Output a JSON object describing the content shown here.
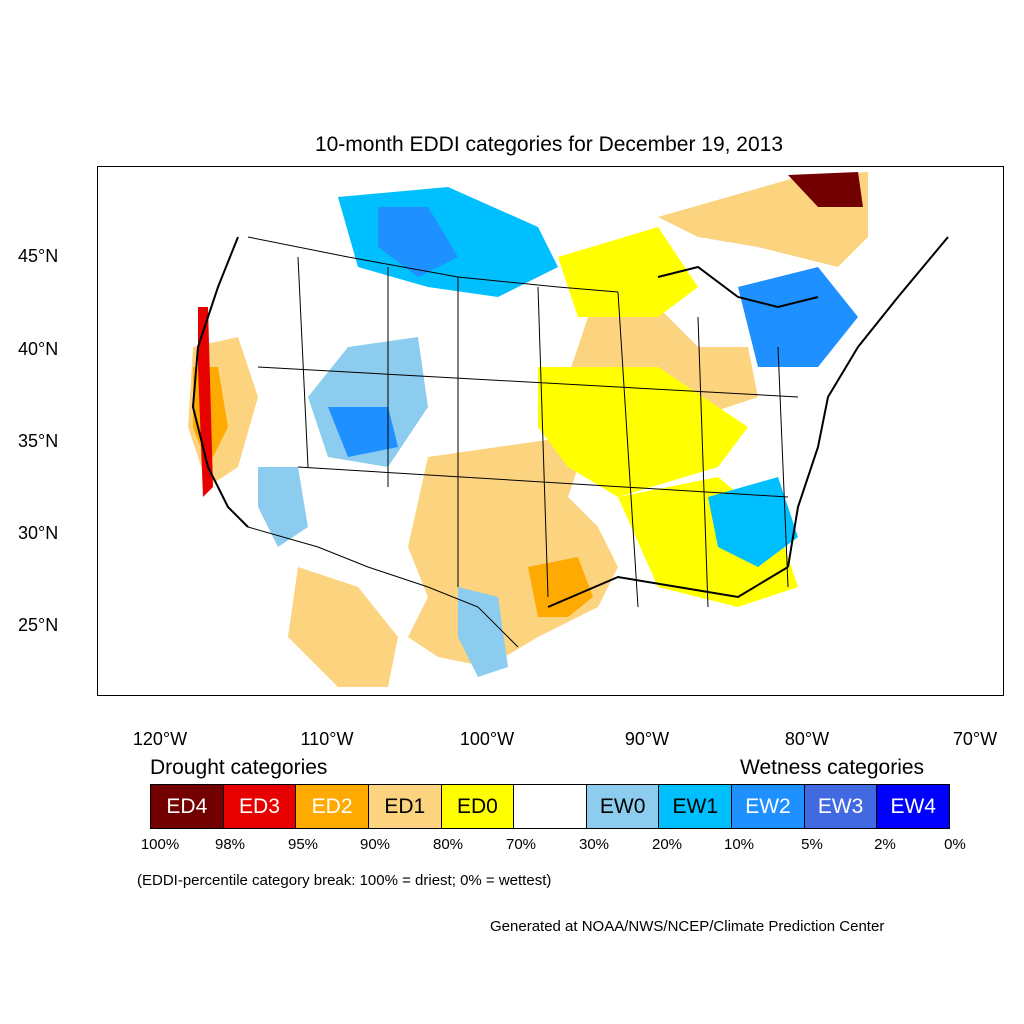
{
  "title": "10-month EDDI categories for December 19, 2013",
  "lat_labels": [
    "45°N",
    "40°N",
    "35°N",
    "30°N",
    "25°N"
  ],
  "lon_labels": [
    "120°W",
    "110°W",
    "100°W",
    "90°W",
    "80°W",
    "70°W"
  ],
  "legend": {
    "drought_heading": "Drought categories",
    "wetness_heading": "Wetness categories",
    "categories": [
      {
        "label": "ED4",
        "color": "#730000",
        "text_color": "#ffffff"
      },
      {
        "label": "ED3",
        "color": "#e60000",
        "text_color": "#ffffff"
      },
      {
        "label": "ED2",
        "color": "#ffaa00",
        "text_color": "#ffffff"
      },
      {
        "label": "ED1",
        "color": "#fcd37f",
        "text_color": "#000000"
      },
      {
        "label": "ED0",
        "color": "#ffff00",
        "text_color": "#000000"
      },
      {
        "label": "",
        "color": "#ffffff",
        "text_color": "#000000"
      },
      {
        "label": "EW0",
        "color": "#8ccdef",
        "text_color": "#000000"
      },
      {
        "label": "EW1",
        "color": "#00bfff",
        "text_color": "#000000"
      },
      {
        "label": "EW2",
        "color": "#1e90ff",
        "text_color": "#ffffff"
      },
      {
        "label": "EW3",
        "color": "#4169e1",
        "text_color": "#ffffff"
      },
      {
        "label": "EW4",
        "color": "#0000ff",
        "text_color": "#ffffff"
      }
    ],
    "breaks": [
      "100%",
      "98%",
      "95%",
      "90%",
      "80%",
      "70%",
      "30%",
      "20%",
      "10%",
      "5%",
      "2%",
      "0%"
    ]
  },
  "note": "(EDDI-percentile category break: 100% = driest; 0% = wettest)",
  "credit": "Generated at NOAA/NWS/NCEP/Climate Prediction Center"
}
